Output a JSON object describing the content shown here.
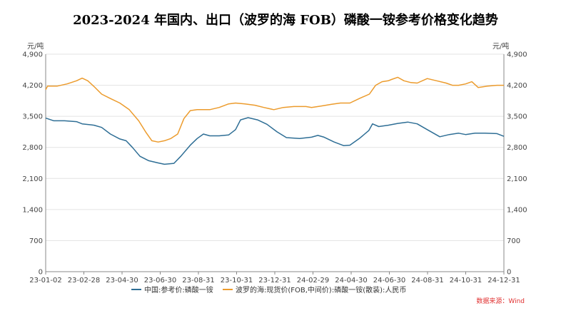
{
  "chart_data": {
    "type": "line",
    "title": "2023-2024 年国内、出口（波罗的海 FOB）磷酸一铵参考价格变化趋势",
    "y_unit_left": "元/吨",
    "y_unit_right": "元/吨",
    "ylim": [
      0,
      4900
    ],
    "yticks": [
      "0",
      "700",
      "1,400",
      "2,100",
      "2,800",
      "3,500",
      "4,200",
      "4,900"
    ],
    "ytick_values": [
      0,
      700,
      1400,
      2100,
      2800,
      3500,
      4200,
      4900
    ],
    "x_ticks": [
      "23-01-02",
      "23-02-28",
      "23-04-30",
      "23-06-30",
      "23-08-31",
      "23-10-31",
      "23-12-31",
      "24-02-29",
      "24-04-30",
      "24-06-30",
      "24-08-31",
      "24-10-31",
      "24-12-31"
    ],
    "x_range": [
      "2023-01-02",
      "2024-12-31"
    ],
    "grid": true,
    "legend_position": "bottom",
    "source": "数据来源：Wind",
    "series": [
      {
        "name": "中国:参考价:磷酸一铵",
        "color": "#2e6e95",
        "points": [
          [
            "2023-01-02",
            3460
          ],
          [
            "2023-01-15",
            3400
          ],
          [
            "2023-02-01",
            3400
          ],
          [
            "2023-02-20",
            3380
          ],
          [
            "2023-03-01",
            3330
          ],
          [
            "2023-03-20",
            3300
          ],
          [
            "2023-04-01",
            3250
          ],
          [
            "2023-04-15",
            3100
          ],
          [
            "2023-04-30",
            2990
          ],
          [
            "2023-05-10",
            2950
          ],
          [
            "2023-05-20",
            2800
          ],
          [
            "2023-06-01",
            2600
          ],
          [
            "2023-06-15",
            2500
          ],
          [
            "2023-06-30",
            2450
          ],
          [
            "2023-07-10",
            2420
          ],
          [
            "2023-07-25",
            2440
          ],
          [
            "2023-08-05",
            2600
          ],
          [
            "2023-08-20",
            2850
          ],
          [
            "2023-08-31",
            3000
          ],
          [
            "2023-09-10",
            3100
          ],
          [
            "2023-09-20",
            3060
          ],
          [
            "2023-10-05",
            3060
          ],
          [
            "2023-10-20",
            3080
          ],
          [
            "2023-10-31",
            3200
          ],
          [
            "2023-11-08",
            3420
          ],
          [
            "2023-11-20",
            3470
          ],
          [
            "2023-12-05",
            3420
          ],
          [
            "2023-12-20",
            3320
          ],
          [
            "2024-01-05",
            3150
          ],
          [
            "2024-01-20",
            3020
          ],
          [
            "2024-02-10",
            3000
          ],
          [
            "2024-02-29",
            3030
          ],
          [
            "2024-03-10",
            3070
          ],
          [
            "2024-03-20",
            3030
          ],
          [
            "2024-04-05",
            2920
          ],
          [
            "2024-04-20",
            2840
          ],
          [
            "2024-04-30",
            2850
          ],
          [
            "2024-05-15",
            3000
          ],
          [
            "2024-05-30",
            3180
          ],
          [
            "2024-06-05",
            3330
          ],
          [
            "2024-06-15",
            3270
          ],
          [
            "2024-06-30",
            3300
          ],
          [
            "2024-07-15",
            3340
          ],
          [
            "2024-07-31",
            3370
          ],
          [
            "2024-08-15",
            3330
          ],
          [
            "2024-08-31",
            3200
          ],
          [
            "2024-09-10",
            3120
          ],
          [
            "2024-09-20",
            3040
          ],
          [
            "2024-10-05",
            3090
          ],
          [
            "2024-10-20",
            3120
          ],
          [
            "2024-10-31",
            3090
          ],
          [
            "2024-11-15",
            3120
          ],
          [
            "2024-12-01",
            3120
          ],
          [
            "2024-12-20",
            3110
          ],
          [
            "2024-12-31",
            3050
          ]
        ]
      },
      {
        "name": "波罗的海:现货价(FOB,中间价):磷酸一铵(散装):人民币",
        "color": "#ec9b2c",
        "points": [
          [
            "2023-01-02",
            4100
          ],
          [
            "2023-01-05",
            4180
          ],
          [
            "2023-01-20",
            4180
          ],
          [
            "2023-02-05",
            4230
          ],
          [
            "2023-02-20",
            4300
          ],
          [
            "2023-03-01",
            4360
          ],
          [
            "2023-03-10",
            4300
          ],
          [
            "2023-03-20",
            4170
          ],
          [
            "2023-04-01",
            4000
          ],
          [
            "2023-04-15",
            3900
          ],
          [
            "2023-04-30",
            3800
          ],
          [
            "2023-05-15",
            3650
          ],
          [
            "2023-05-30",
            3400
          ],
          [
            "2023-06-10",
            3150
          ],
          [
            "2023-06-20",
            2950
          ],
          [
            "2023-06-30",
            2920
          ],
          [
            "2023-07-10",
            2950
          ],
          [
            "2023-07-20",
            3000
          ],
          [
            "2023-07-31",
            3100
          ],
          [
            "2023-08-10",
            3450
          ],
          [
            "2023-08-20",
            3630
          ],
          [
            "2023-08-31",
            3650
          ],
          [
            "2023-09-20",
            3650
          ],
          [
            "2023-10-05",
            3700
          ],
          [
            "2023-10-20",
            3780
          ],
          [
            "2023-10-31",
            3800
          ],
          [
            "2023-11-15",
            3780
          ],
          [
            "2023-12-01",
            3750
          ],
          [
            "2023-12-15",
            3700
          ],
          [
            "2023-12-31",
            3650
          ],
          [
            "2024-01-15",
            3700
          ],
          [
            "2024-02-01",
            3720
          ],
          [
            "2024-02-20",
            3720
          ],
          [
            "2024-02-29",
            3700
          ],
          [
            "2024-03-15",
            3730
          ],
          [
            "2024-04-01",
            3770
          ],
          [
            "2024-04-15",
            3800
          ],
          [
            "2024-04-30",
            3800
          ],
          [
            "2024-05-15",
            3900
          ],
          [
            "2024-05-31",
            4000
          ],
          [
            "2024-06-10",
            4200
          ],
          [
            "2024-06-20",
            4280
          ],
          [
            "2024-06-30",
            4300
          ],
          [
            "2024-07-05",
            4330
          ],
          [
            "2024-07-15",
            4380
          ],
          [
            "2024-07-25",
            4300
          ],
          [
            "2024-08-05",
            4260
          ],
          [
            "2024-08-15",
            4250
          ],
          [
            "2024-08-31",
            4350
          ],
          [
            "2024-09-15",
            4300
          ],
          [
            "2024-09-30",
            4250
          ],
          [
            "2024-10-10",
            4200
          ],
          [
            "2024-10-20",
            4200
          ],
          [
            "2024-10-31",
            4230
          ],
          [
            "2024-11-10",
            4280
          ],
          [
            "2024-11-20",
            4150
          ],
          [
            "2024-12-05",
            4180
          ],
          [
            "2024-12-20",
            4200
          ],
          [
            "2024-12-31",
            4200
          ]
        ]
      }
    ]
  }
}
